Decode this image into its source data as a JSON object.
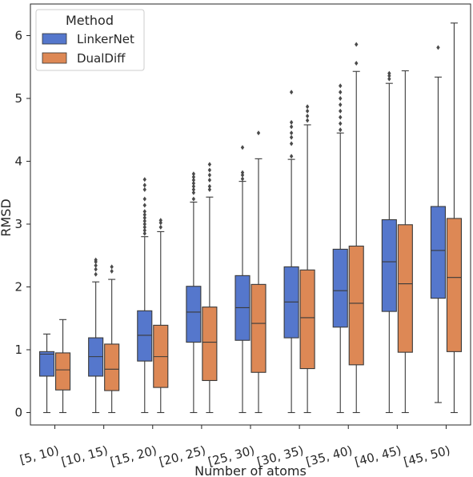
{
  "chart_data": {
    "type": "box",
    "xlabel": "Number of atoms",
    "ylabel": "RMSD",
    "ylim": [
      -0.2,
      6.5
    ],
    "yticks": [
      0,
      1,
      2,
      3,
      4,
      5,
      6
    ],
    "grid": false,
    "legend": {
      "title": "Method",
      "placement": "top-left"
    },
    "categories": [
      "[5, 10)",
      "[10, 15)",
      "[15, 20)",
      "[20, 25)",
      "[25, 30)",
      "[30, 35)",
      "[35, 40)",
      "[40, 45)",
      "[45, 50)"
    ],
    "series": [
      {
        "name": "LinkerNet",
        "color": "#5577cc",
        "boxes": [
          {
            "whislo": 0.0,
            "q1": 0.58,
            "med": 0.93,
            "q3": 0.97,
            "whishi": 1.25,
            "fliers": []
          },
          {
            "whislo": 0.0,
            "q1": 0.58,
            "med": 0.89,
            "q3": 1.19,
            "whishi": 2.08,
            "fliers": [
              2.2,
              2.28,
              2.34,
              2.4,
              2.43
            ]
          },
          {
            "whislo": 0.0,
            "q1": 0.82,
            "med": 1.23,
            "q3": 1.62,
            "whishi": 2.8,
            "fliers": [
              2.85,
              2.9,
              2.95,
              3.0,
              3.05,
              3.1,
              3.15,
              3.2,
              3.3,
              3.4,
              3.55,
              3.62,
              3.71
            ]
          },
          {
            "whislo": 0.0,
            "q1": 1.12,
            "med": 1.6,
            "q3": 2.01,
            "whishi": 3.35,
            "fliers": [
              3.4,
              3.5,
              3.55,
              3.6,
              3.65,
              3.7,
              3.75,
              3.8
            ]
          },
          {
            "whislo": 0.0,
            "q1": 1.15,
            "med": 1.67,
            "q3": 2.18,
            "whishi": 3.68,
            "fliers": [
              3.72,
              3.78,
              3.82,
              4.22
            ]
          },
          {
            "whislo": 0.0,
            "q1": 1.19,
            "med": 1.76,
            "q3": 2.32,
            "whishi": 4.03,
            "fliers": [
              4.08,
              4.28,
              4.38,
              4.45,
              4.55,
              4.62,
              5.1
            ]
          },
          {
            "whislo": 0.0,
            "q1": 1.36,
            "med": 1.94,
            "q3": 2.6,
            "whishi": 4.45,
            "fliers": [
              4.5,
              4.6,
              4.7,
              4.8,
              4.9,
              5.0,
              5.1,
              5.2
            ]
          },
          {
            "whislo": 0.0,
            "q1": 1.61,
            "med": 2.4,
            "q3": 3.07,
            "whishi": 5.24,
            "fliers": [
              5.31,
              5.36,
              5.4
            ]
          },
          {
            "whislo": 0.16,
            "q1": 1.82,
            "med": 2.58,
            "q3": 3.28,
            "whishi": 5.34,
            "fliers": [
              5.81
            ]
          }
        ]
      },
      {
        "name": "DualDiff",
        "color": "#dd8855",
        "boxes": [
          {
            "whislo": 0.0,
            "q1": 0.36,
            "med": 0.68,
            "q3": 0.95,
            "whishi": 1.48,
            "fliers": []
          },
          {
            "whislo": 0.0,
            "q1": 0.35,
            "med": 0.69,
            "q3": 1.09,
            "whishi": 2.12,
            "fliers": [
              2.25,
              2.32
            ]
          },
          {
            "whislo": 0.0,
            "q1": 0.4,
            "med": 0.89,
            "q3": 1.39,
            "whishi": 2.88,
            "fliers": [
              2.95,
              3.02,
              3.06
            ]
          },
          {
            "whislo": 0.0,
            "q1": 0.51,
            "med": 1.12,
            "q3": 1.68,
            "whishi": 3.43,
            "fliers": [
              3.55,
              3.6,
              3.7,
              3.78,
              3.86,
              3.95
            ]
          },
          {
            "whislo": 0.0,
            "q1": 0.64,
            "med": 1.42,
            "q3": 2.04,
            "whishi": 4.04,
            "fliers": [
              4.45
            ]
          },
          {
            "whislo": 0.0,
            "q1": 0.7,
            "med": 1.51,
            "q3": 2.27,
            "whishi": 4.58,
            "fliers": [
              4.65,
              4.72,
              4.8,
              4.87
            ]
          },
          {
            "whislo": 0.0,
            "q1": 0.76,
            "med": 1.74,
            "q3": 2.65,
            "whishi": 5.43,
            "fliers": [
              5.56,
              5.86
            ]
          },
          {
            "whislo": 0.0,
            "q1": 0.96,
            "med": 2.05,
            "q3": 2.99,
            "whishi": 5.44,
            "fliers": []
          },
          {
            "whislo": 0.0,
            "q1": 0.97,
            "med": 2.15,
            "q3": 3.09,
            "whishi": 6.2,
            "fliers": []
          }
        ]
      }
    ]
  }
}
